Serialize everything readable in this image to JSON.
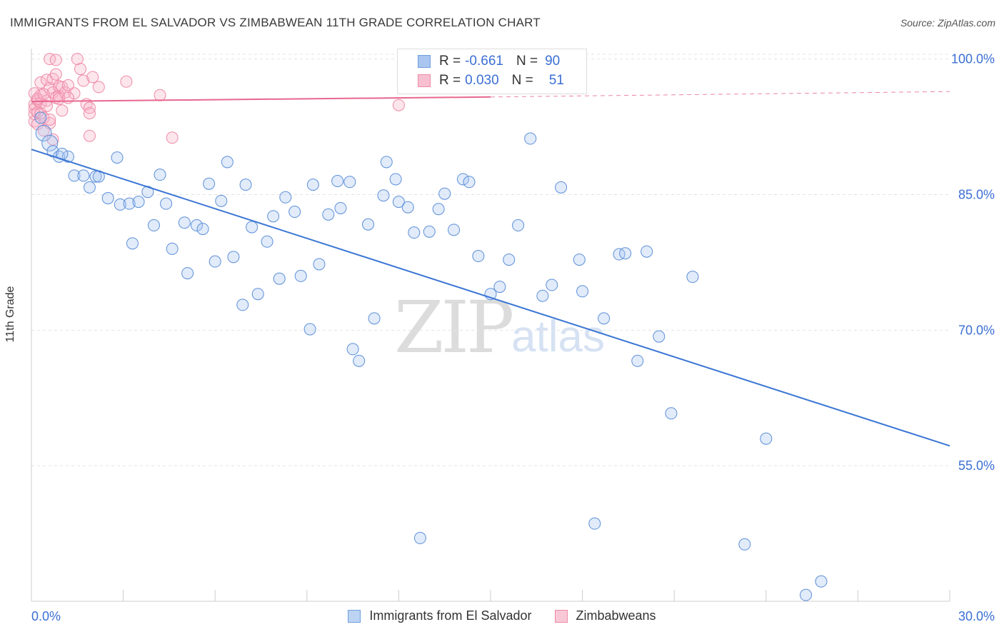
{
  "title": "IMMIGRANTS FROM EL SALVADOR VS ZIMBABWEAN 11TH GRADE CORRELATION CHART",
  "source": "Source: ZipAtlas.com",
  "watermark": {
    "zip": "ZIP",
    "atlas": "atlas"
  },
  "legend": {
    "rows": [
      {
        "r_label": "R =",
        "r_value": "-0.661",
        "n_label": "N =",
        "n_value": "90",
        "color": "#a9c6f0",
        "border": "#6f9fe0"
      },
      {
        "r_label": "R =",
        "r_value": "0.030",
        "n_label": "N =",
        "n_value": "51",
        "color": "#f8bfd0",
        "border": "#ee8aa8"
      }
    ]
  },
  "bottom_legend": [
    {
      "label": "Immigrants from El Salvador",
      "color": "#bcd3f3",
      "border": "#6f9fe0"
    },
    {
      "label": "Zimbabweans",
      "color": "#f9c8d6",
      "border": "#ee8aa8"
    }
  ],
  "chart_data": {
    "type": "scatter",
    "title": "IMMIGRANTS FROM EL SALVADOR VS ZIMBABWEAN 11TH GRADE CORRELATION CHART",
    "xlabel": "",
    "ylabel": "11th Grade",
    "xlim": [
      0,
      30
    ],
    "ylim": [
      40,
      101
    ],
    "x_tick_labels": [
      "0.0%",
      "30.0%"
    ],
    "y_tick_labels": [
      "100.0%",
      "85.0%",
      "70.0%",
      "55.0%"
    ],
    "y_ticks": [
      100,
      85,
      70,
      55
    ],
    "grid": true,
    "legend_position": "top-center",
    "colors": {
      "blue": "#3b76d4",
      "pink": "#e8678f",
      "axis_text": "#3b6fd4"
    },
    "series": [
      {
        "name": "Immigrants from El Salvador",
        "color": "#3b76d4",
        "trend": {
          "x": [
            0,
            30
          ],
          "y": [
            90.0,
            57.2
          ]
        },
        "points": [
          [
            0.4,
            91.8
          ],
          [
            0.6,
            90.7
          ],
          [
            0.7,
            89.8
          ],
          [
            0.9,
            89.2
          ],
          [
            1.2,
            89.2
          ],
          [
            1.4,
            87.1
          ],
          [
            1.7,
            87.1
          ],
          [
            1.9,
            85.8
          ],
          [
            2.1,
            87.0
          ],
          [
            2.2,
            87.0
          ],
          [
            2.5,
            84.6
          ],
          [
            2.8,
            89.1
          ],
          [
            2.9,
            83.9
          ],
          [
            3.2,
            84.0
          ],
          [
            3.5,
            84.2
          ],
          [
            3.3,
            79.6
          ],
          [
            3.8,
            85.3
          ],
          [
            4.0,
            81.6
          ],
          [
            4.2,
            87.2
          ],
          [
            4.4,
            84.0
          ],
          [
            4.6,
            79.0
          ],
          [
            5.0,
            81.9
          ],
          [
            5.1,
            76.3
          ],
          [
            5.4,
            81.6
          ],
          [
            5.6,
            81.2
          ],
          [
            5.8,
            86.2
          ],
          [
            6.0,
            77.6
          ],
          [
            6.2,
            84.3
          ],
          [
            6.4,
            88.6
          ],
          [
            6.6,
            78.1
          ],
          [
            6.9,
            72.8
          ],
          [
            7.0,
            86.1
          ],
          [
            7.2,
            81.4
          ],
          [
            7.4,
            74.0
          ],
          [
            7.7,
            79.8
          ],
          [
            7.9,
            82.6
          ],
          [
            8.1,
            75.7
          ],
          [
            8.3,
            84.7
          ],
          [
            8.6,
            83.1
          ],
          [
            8.8,
            76.0
          ],
          [
            9.1,
            70.1
          ],
          [
            9.2,
            86.1
          ],
          [
            9.4,
            77.3
          ],
          [
            9.7,
            82.8
          ],
          [
            10.0,
            86.5
          ],
          [
            10.1,
            83.5
          ],
          [
            10.4,
            86.4
          ],
          [
            10.5,
            67.9
          ],
          [
            10.7,
            66.6
          ],
          [
            11.0,
            81.7
          ],
          [
            11.2,
            71.3
          ],
          [
            11.5,
            84.9
          ],
          [
            11.6,
            88.6
          ],
          [
            11.9,
            86.7
          ],
          [
            12.0,
            84.2
          ],
          [
            12.3,
            83.6
          ],
          [
            12.5,
            80.8
          ],
          [
            12.7,
            47.0
          ],
          [
            13.0,
            80.9
          ],
          [
            13.3,
            83.4
          ],
          [
            13.5,
            85.1
          ],
          [
            13.8,
            81.1
          ],
          [
            14.1,
            86.7
          ],
          [
            14.3,
            86.4
          ],
          [
            14.6,
            78.2
          ],
          [
            15.0,
            74.0
          ],
          [
            15.3,
            74.8
          ],
          [
            15.6,
            77.8
          ],
          [
            15.9,
            81.6
          ],
          [
            16.3,
            91.2
          ],
          [
            16.7,
            73.8
          ],
          [
            17.0,
            75.0
          ],
          [
            17.3,
            85.8
          ],
          [
            17.9,
            77.8
          ],
          [
            18.0,
            74.3
          ],
          [
            18.4,
            48.6
          ],
          [
            18.7,
            71.3
          ],
          [
            19.2,
            78.4
          ],
          [
            19.4,
            78.5
          ],
          [
            19.8,
            66.6
          ],
          [
            20.1,
            78.7
          ],
          [
            20.5,
            69.3
          ],
          [
            20.9,
            60.8
          ],
          [
            21.6,
            75.9
          ],
          [
            23.3,
            46.3
          ],
          [
            24.0,
            58.0
          ],
          [
            25.3,
            40.7
          ],
          [
            25.8,
            42.2
          ],
          [
            0.3,
            93.5
          ],
          [
            1.0,
            89.5
          ]
        ]
      },
      {
        "name": "Zimbabweans",
        "color": "#e8678f",
        "trend": {
          "x": [
            0,
            15
          ],
          "y": [
            95.3,
            95.8
          ]
        },
        "trend_extension": {
          "x": [
            15,
            30
          ],
          "y": [
            95.8,
            96.4
          ]
        },
        "points": [
          [
            0.1,
            96.2
          ],
          [
            0.1,
            95.0
          ],
          [
            0.1,
            94.5
          ],
          [
            0.1,
            93.9
          ],
          [
            0.1,
            93.1
          ],
          [
            0.2,
            95.4
          ],
          [
            0.2,
            94.1
          ],
          [
            0.2,
            92.8
          ],
          [
            0.3,
            97.4
          ],
          [
            0.3,
            96.0
          ],
          [
            0.3,
            95.1
          ],
          [
            0.3,
            94.0
          ],
          [
            0.4,
            93.5
          ],
          [
            0.4,
            92.1
          ],
          [
            0.5,
            97.7
          ],
          [
            0.5,
            95.4
          ],
          [
            0.5,
            94.8
          ],
          [
            0.6,
            100.0
          ],
          [
            0.6,
            96.8
          ],
          [
            0.6,
            92.9
          ],
          [
            0.7,
            97.8
          ],
          [
            0.7,
            96.3
          ],
          [
            0.7,
            91.1
          ],
          [
            0.8,
            99.9
          ],
          [
            0.8,
            98.3
          ],
          [
            0.8,
            95.7
          ],
          [
            0.9,
            97.0
          ],
          [
            0.9,
            95.9
          ],
          [
            1.0,
            96.9
          ],
          [
            1.0,
            94.3
          ],
          [
            1.1,
            96.3
          ],
          [
            1.2,
            97.1
          ],
          [
            1.4,
            96.2
          ],
          [
            1.5,
            100.0
          ],
          [
            1.6,
            98.9
          ],
          [
            1.7,
            97.6
          ],
          [
            1.8,
            95.0
          ],
          [
            1.9,
            94.6
          ],
          [
            1.9,
            94.0
          ],
          [
            1.9,
            91.5
          ],
          [
            2.0,
            98.0
          ],
          [
            2.2,
            96.9
          ],
          [
            3.1,
            97.5
          ],
          [
            4.2,
            96.0
          ],
          [
            4.6,
            91.3
          ],
          [
            12.0,
            94.9
          ],
          [
            0.2,
            95.6
          ],
          [
            0.4,
            96.1
          ],
          [
            0.6,
            93.3
          ],
          [
            0.9,
            95.6
          ],
          [
            1.2,
            95.7
          ]
        ]
      }
    ]
  }
}
